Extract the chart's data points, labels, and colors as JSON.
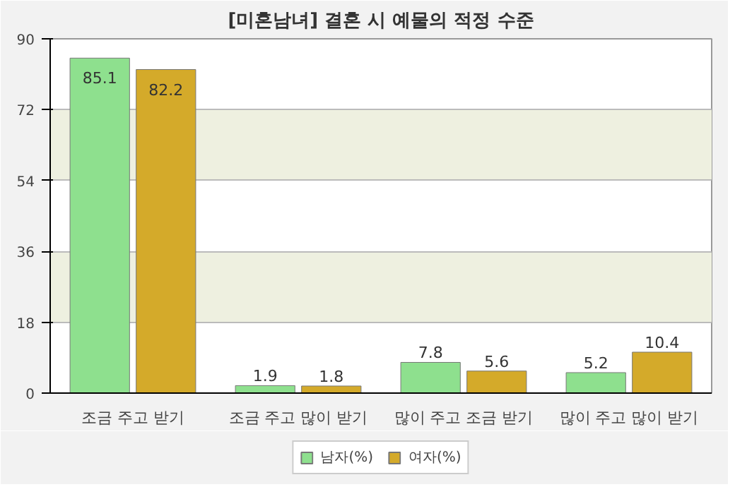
{
  "chart_data": {
    "type": "bar",
    "title": "[미혼남녀] 결혼 시 예물의 적정 수준",
    "categories": [
      "조금 주고 받기",
      "조금 주고 많이 받기",
      "많이 주고 조금 받기",
      "많이 주고 많이 받기"
    ],
    "series": [
      {
        "name": "남자(%)",
        "color": "#8ee08e",
        "values": [
          85.1,
          1.9,
          7.8,
          5.2
        ]
      },
      {
        "name": "여자(%)",
        "color": "#d4aa2a",
        "values": [
          82.2,
          1.8,
          5.6,
          10.4
        ]
      }
    ],
    "ylim": [
      0,
      90
    ],
    "yticks": [
      0,
      18,
      36,
      54,
      72,
      90
    ],
    "grid": "y",
    "legend": "bottom",
    "data_labels": true
  }
}
